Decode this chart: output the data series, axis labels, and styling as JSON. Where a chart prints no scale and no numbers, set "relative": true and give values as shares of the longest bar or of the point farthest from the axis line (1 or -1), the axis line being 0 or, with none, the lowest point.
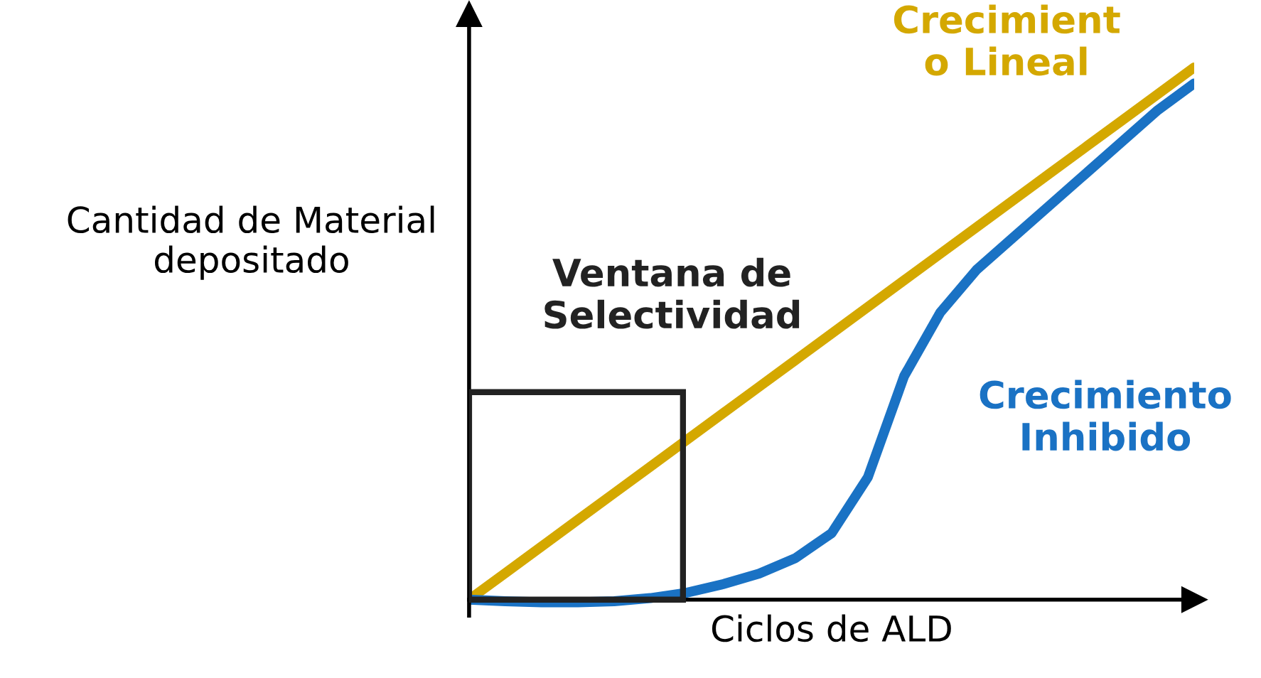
{
  "chart_data": {
    "type": "line",
    "relative": true,
    "xlabel": "Ciclos de ALD",
    "ylabel": "Cantidad de Material\ndepositado",
    "categories": [
      null,
      null,
      null,
      null,
      null,
      null,
      null,
      null,
      null,
      null,
      null,
      null,
      null,
      null,
      null,
      null,
      null,
      null,
      null,
      null,
      null
    ],
    "series": [
      {
        "name": "Crecimient\no Lineal",
        "color": "#d4a800",
        "values": [
          0,
          0.05,
          0.1,
          0.15,
          0.2,
          0.25,
          0.3,
          0.35,
          0.4,
          0.45,
          0.5,
          0.55,
          0.6,
          0.65,
          0.7,
          0.75,
          0.8,
          0.85,
          0.9,
          0.95,
          1
        ]
      },
      {
        "name": "Crecimiento\nInhibido",
        "color": "#1a72c4",
        "values": [
          0,
          -0.003,
          -0.005,
          -0.005,
          -0.003,
          0.003,
          0.013,
          0.029,
          0.049,
          0.078,
          0.125,
          0.23,
          0.42,
          0.54,
          0.62,
          0.68,
          0.74,
          0.8,
          0.86,
          0.92,
          0.97
        ]
      }
    ],
    "annotations": [
      "Ventana de\nSelectividad"
    ],
    "legend": false,
    "grid": false,
    "marker": "none",
    "line_style": "solid"
  }
}
